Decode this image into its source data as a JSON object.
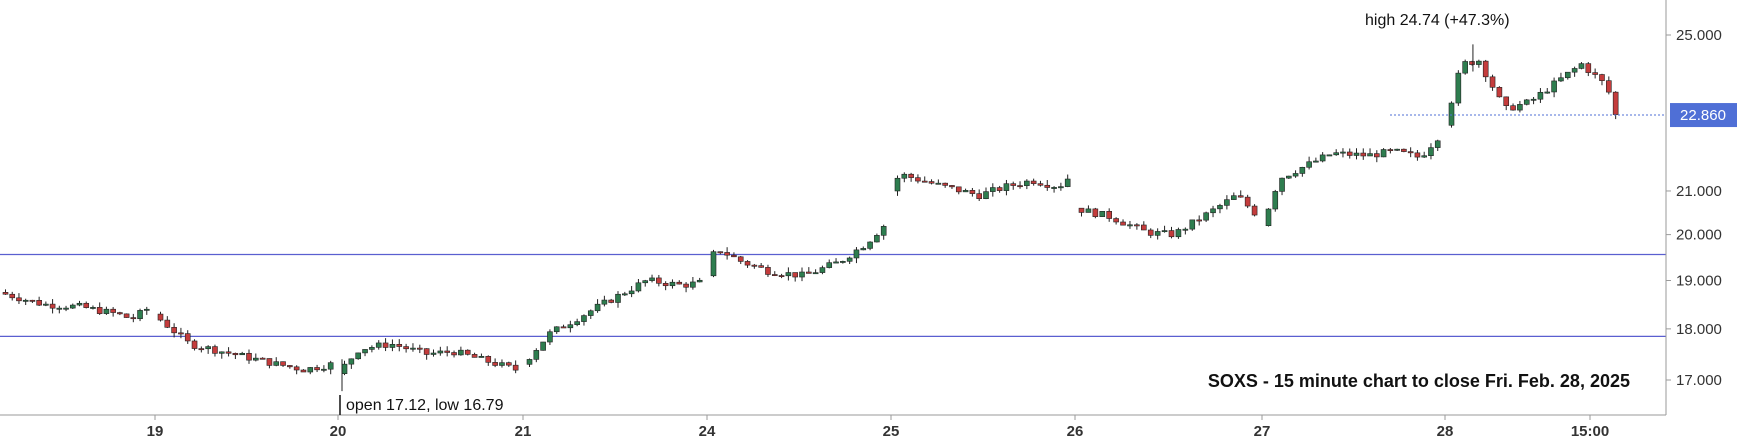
{
  "chart_data": {
    "type": "candlestick",
    "title": "SOXS - 15 minute chart to close Fri. Feb. 28, 2025",
    "ylim": [
      16.4,
      25.3
    ],
    "y_scale": "log",
    "y_ticks": [
      "17.000",
      "18.000",
      "19.000",
      "20.000",
      "21.000",
      "25.000"
    ],
    "y_tick_values": [
      17,
      18,
      19,
      20,
      21,
      25
    ],
    "x_ticks": [
      "19",
      "20",
      "21",
      "24",
      "25",
      "26",
      "27",
      "28",
      "15:00"
    ],
    "last_price": {
      "label": "22.860",
      "value": 22.86
    },
    "horizontal_lines": [
      {
        "value": 19.56
      },
      {
        "value": 17.85
      }
    ],
    "annotations": {
      "high": "high 24.74 (+47.3%)",
      "open_low": "open 17.12, low 16.79"
    },
    "days": [
      {
        "key": "18",
        "path": [
          [
            18.75,
            0
          ],
          [
            18.5,
            0.3
          ],
          [
            18.45,
            0.55
          ],
          [
            18.3,
            0.8
          ],
          [
            18.2,
            0.9
          ],
          [
            18.4,
            1
          ]
        ]
      },
      {
        "key": "19",
        "path": [
          [
            18.3,
            0
          ],
          [
            17.7,
            0.2
          ],
          [
            17.5,
            0.45
          ],
          [
            17.3,
            0.7
          ],
          [
            17.2,
            0.85
          ],
          [
            17.3,
            1
          ]
        ]
      },
      {
        "key": "20",
        "path": [
          [
            17.12,
            0
          ],
          [
            17.6,
            0.12
          ],
          [
            17.7,
            0.3
          ],
          [
            17.5,
            0.5
          ],
          [
            17.55,
            0.65
          ],
          [
            17.35,
            0.85
          ],
          [
            17.2,
            1
          ]
        ]
      },
      {
        "key": "21",
        "path": [
          [
            17.3,
            0
          ],
          [
            17.9,
            0.15
          ],
          [
            18.2,
            0.3
          ],
          [
            18.6,
            0.5
          ],
          [
            19.0,
            0.7
          ],
          [
            18.9,
            0.9
          ],
          [
            18.95,
            1
          ]
        ]
      },
      {
        "key": "24",
        "path": [
          [
            19.1,
            0
          ],
          [
            19.7,
            0.05
          ],
          [
            19.4,
            0.2
          ],
          [
            19.2,
            0.35
          ],
          [
            19.1,
            0.55
          ],
          [
            19.4,
            0.75
          ],
          [
            19.8,
            0.9
          ],
          [
            20.2,
            1
          ]
        ]
      },
      {
        "key": "25",
        "path": [
          [
            21.0,
            0
          ],
          [
            21.4,
            0.05
          ],
          [
            21.1,
            0.3
          ],
          [
            20.9,
            0.5
          ],
          [
            21.1,
            0.65
          ],
          [
            21.25,
            0.8
          ],
          [
            21.1,
            0.95
          ],
          [
            21.3,
            1
          ]
        ]
      },
      {
        "key": "26",
        "path": [
          [
            20.6,
            0
          ],
          [
            20.4,
            0.2
          ],
          [
            20.05,
            0.4
          ],
          [
            20.0,
            0.55
          ],
          [
            20.5,
            0.75
          ],
          [
            20.9,
            0.9
          ],
          [
            20.5,
            1
          ]
        ]
      },
      {
        "key": "27",
        "path": [
          [
            20.2,
            0
          ],
          [
            21.3,
            0.1
          ],
          [
            21.6,
            0.25
          ],
          [
            21.9,
            0.4
          ],
          [
            21.85,
            0.6
          ],
          [
            21.95,
            0.75
          ],
          [
            21.8,
            0.9
          ],
          [
            22.3,
            1
          ]
        ]
      },
      {
        "key": "28",
        "path": [
          [
            22.6,
            0
          ],
          [
            24.2,
            0.1
          ],
          [
            24.3,
            0.2
          ],
          [
            23.0,
            0.35
          ],
          [
            23.2,
            0.5
          ],
          [
            23.7,
            0.65
          ],
          [
            24.2,
            0.8
          ],
          [
            23.6,
            0.95
          ],
          [
            22.86,
            1
          ]
        ]
      }
    ]
  },
  "colors": {
    "up_candle": "#2e7d4f",
    "down_candle": "#c43c3c",
    "candle_edge": "#222222",
    "hline": "#5a5fd0",
    "price_tag": "#4f6fd6",
    "axis": "#9a9a9a"
  }
}
